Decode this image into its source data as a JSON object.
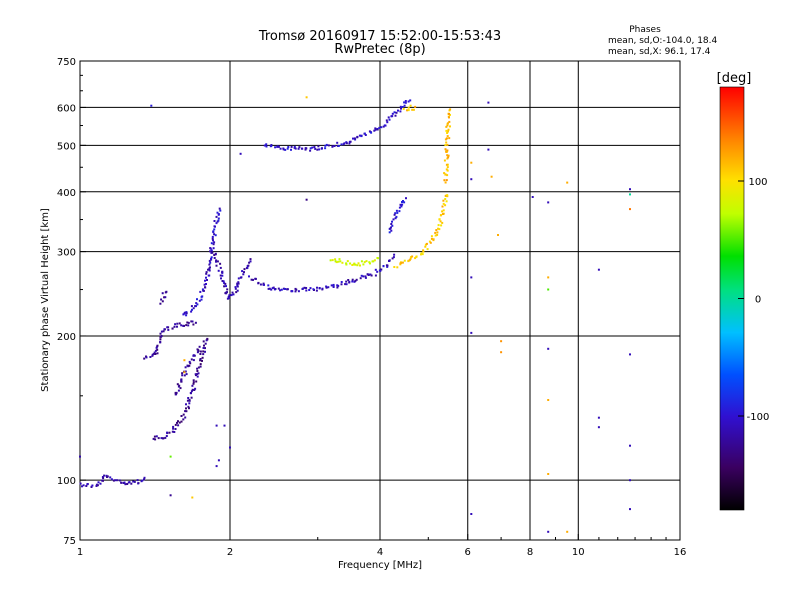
{
  "chart_data": {
    "type": "scatter",
    "title": "Tromsø 20160917 15:52:00-15:53:43",
    "subtitle": "RwPretec (8p)",
    "xlabel": "Frequency [MHz]",
    "ylabel": "Stationary phase Virtual Height [km]",
    "x_scale": "log",
    "y_scale": "log",
    "xlim": [
      1,
      16
    ],
    "ylim": [
      75,
      750
    ],
    "x_ticks": [
      1,
      2,
      4,
      6,
      8,
      10,
      16
    ],
    "x_tick_labels": [
      "1",
      "2",
      "4",
      "6",
      "8",
      "10",
      "16"
    ],
    "y_ticks": [
      75,
      100,
      200,
      300,
      400,
      500,
      600,
      750
    ],
    "y_tick_labels": [
      "75",
      "100",
      "200",
      "300",
      "400",
      "500",
      "600",
      "750"
    ],
    "x_grid": [
      2,
      4,
      6,
      8,
      10
    ],
    "y_grid": [
      100,
      200,
      300,
      400,
      500,
      600
    ],
    "info": {
      "heading": "Phases",
      "line1": "mean, sd,O:-104.0, 18.4",
      "line2": "mean, sd,X:  96.1, 17.4"
    },
    "colorbar": {
      "label": "[deg]",
      "range": [
        -180,
        180
      ],
      "ticks": [
        100,
        0,
        -100
      ],
      "tick_labels": [
        "100",
        "0",
        "-100"
      ]
    },
    "traces": [
      {
        "x": [
          1.0,
          1.08,
          1.12,
          1.2,
          1.3,
          1.36
        ],
        "y": [
          98,
          97,
          102,
          99,
          99,
          101
        ],
        "phase": -115
      },
      {
        "x": [
          1.35,
          1.42,
          1.46,
          1.55,
          1.65,
          1.72
        ],
        "y": [
          180,
          182,
          205,
          210,
          212,
          214
        ],
        "phase": -125
      },
      {
        "x": [
          1.46,
          1.48
        ],
        "y": [
          235,
          250
        ],
        "phase": -125
      },
      {
        "x": [
          1.4,
          1.48,
          1.55,
          1.62,
          1.7,
          1.8
        ],
        "y": [
          122,
          123,
          128,
          136,
          160,
          200
        ],
        "phase": -125
      },
      {
        "x": [
          1.55,
          1.65,
          1.75
        ],
        "y": [
          150,
          175,
          190
        ],
        "phase": -125
      },
      {
        "x": [
          1.6,
          1.7,
          1.78,
          1.84,
          1.88,
          1.92
        ],
        "y": [
          220,
          230,
          250,
          300,
          350,
          370
        ],
        "phase": -105
      },
      {
        "x": [
          1.86,
          1.92,
          1.98,
          2.04,
          2.1,
          2.2
        ],
        "y": [
          300,
          270,
          240,
          245,
          265,
          290
        ],
        "phase": -115
      },
      {
        "x": [
          2.2,
          2.4,
          2.6,
          2.8,
          3.0,
          3.2,
          3.4,
          3.6,
          3.9,
          4.1,
          4.3
        ],
        "y": [
          265,
          252,
          250,
          250,
          250,
          253,
          258,
          262,
          270,
          280,
          295
        ],
        "phase": -110
      },
      {
        "x": [
          4.2,
          4.3,
          4.5
        ],
        "y": [
          330,
          360,
          390
        ],
        "phase": -100
      },
      {
        "x": [
          3.2,
          3.4,
          3.6,
          3.8,
          4.0
        ],
        "y": [
          290,
          285,
          282,
          285,
          290
        ],
        "phase": 80
      },
      {
        "x": [
          4.3,
          4.5,
          4.8,
          5.0,
          5.2,
          5.35,
          5.45
        ],
        "y": [
          280,
          285,
          295,
          310,
          330,
          360,
          400
        ],
        "phase": 110
      },
      {
        "x": [
          5.4,
          5.45,
          5.48,
          5.5
        ],
        "y": [
          420,
          480,
          540,
          600
        ],
        "phase": 115
      },
      {
        "x": [
          2.35,
          2.6,
          2.9,
          3.2,
          3.5,
          3.8,
          4.1,
          4.35,
          4.6
        ],
        "y": [
          500,
          492,
          492,
          498,
          510,
          530,
          555,
          590,
          630
        ],
        "phase": -105
      },
      {
        "x": [
          4.5,
          4.65,
          4.75
        ],
        "y": [
          590,
          600,
          595
        ],
        "phase": 110
      }
    ],
    "points": [
      {
        "x": 1.39,
        "y": 605,
        "phase": -95
      },
      {
        "x": 2.85,
        "y": 630,
        "phase": 110
      },
      {
        "x": 2.1,
        "y": 480,
        "phase": -110
      },
      {
        "x": 2.85,
        "y": 385,
        "phase": -130
      },
      {
        "x": 1.0,
        "y": 112,
        "phase": -115
      },
      {
        "x": 1.52,
        "y": 93,
        "phase": -125
      },
      {
        "x": 1.68,
        "y": 92,
        "phase": 110
      },
      {
        "x": 1.88,
        "y": 107,
        "phase": -110
      },
      {
        "x": 1.9,
        "y": 110,
        "phase": -110
      },
      {
        "x": 2.0,
        "y": 117,
        "phase": -110
      },
      {
        "x": 1.88,
        "y": 130,
        "phase": -110
      },
      {
        "x": 1.95,
        "y": 130,
        "phase": -110
      },
      {
        "x": 1.62,
        "y": 168,
        "phase": 120
      },
      {
        "x": 1.62,
        "y": 178,
        "phase": 120
      },
      {
        "x": 1.52,
        "y": 112,
        "phase": 55
      },
      {
        "x": 6.6,
        "y": 614,
        "phase": -110
      },
      {
        "x": 6.6,
        "y": 490,
        "phase": -110
      },
      {
        "x": 6.1,
        "y": 460,
        "phase": 120
      },
      {
        "x": 6.1,
        "y": 425,
        "phase": -110
      },
      {
        "x": 6.7,
        "y": 430,
        "phase": 120
      },
      {
        "x": 6.1,
        "y": 265,
        "phase": -110
      },
      {
        "x": 6.1,
        "y": 203,
        "phase": -110
      },
      {
        "x": 6.1,
        "y": 85,
        "phase": -110
      },
      {
        "x": 6.9,
        "y": 325,
        "phase": 120
      },
      {
        "x": 7.0,
        "y": 195,
        "phase": 130
      },
      {
        "x": 7.0,
        "y": 185,
        "phase": 130
      },
      {
        "x": 8.1,
        "y": 390,
        "phase": -110
      },
      {
        "x": 8.7,
        "y": 380,
        "phase": -110
      },
      {
        "x": 8.7,
        "y": 265,
        "phase": 120
      },
      {
        "x": 8.7,
        "y": 250,
        "phase": 50
      },
      {
        "x": 8.7,
        "y": 188,
        "phase": -110
      },
      {
        "x": 8.7,
        "y": 147,
        "phase": 120
      },
      {
        "x": 8.7,
        "y": 103,
        "phase": 120
      },
      {
        "x": 8.7,
        "y": 78,
        "phase": -110
      },
      {
        "x": 9.5,
        "y": 418,
        "phase": 120
      },
      {
        "x": 9.5,
        "y": 78,
        "phase": 120
      },
      {
        "x": 11.0,
        "y": 275,
        "phase": -110
      },
      {
        "x": 11.0,
        "y": 135,
        "phase": -110
      },
      {
        "x": 11.0,
        "y": 129,
        "phase": -110
      },
      {
        "x": 12.7,
        "y": 405,
        "phase": -110
      },
      {
        "x": 12.7,
        "y": 395,
        "phase": 0
      },
      {
        "x": 12.7,
        "y": 368,
        "phase": 140
      },
      {
        "x": 12.7,
        "y": 183,
        "phase": -110
      },
      {
        "x": 12.7,
        "y": 118,
        "phase": -110
      },
      {
        "x": 12.7,
        "y": 100,
        "phase": -110
      },
      {
        "x": 12.7,
        "y": 87,
        "phase": -110
      }
    ]
  }
}
